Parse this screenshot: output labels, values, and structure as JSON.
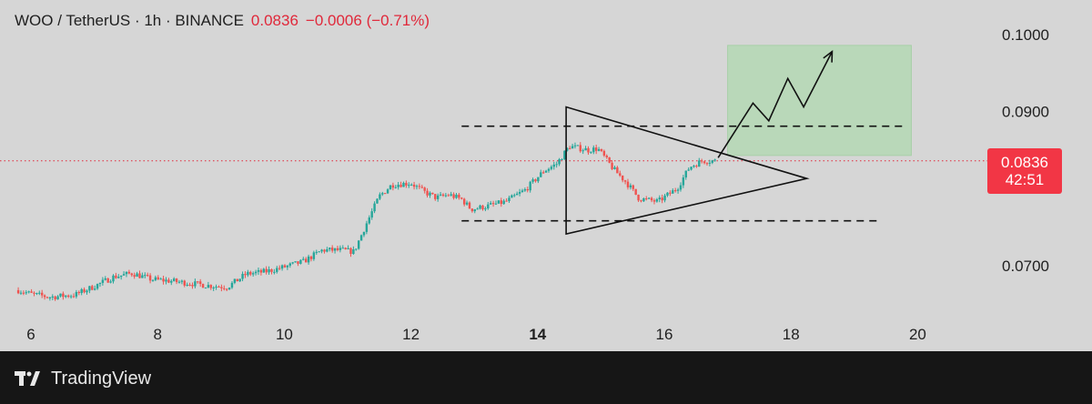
{
  "header": {
    "symbol": "WOO / TetherUS · 1h · BINANCE",
    "price": "0.0836",
    "change": "−0.0006 (−0.71%)"
  },
  "price_tag": {
    "price": "0.0836",
    "countdown": "42:51"
  },
  "footer": {
    "brand": "TradingView",
    "logo_icon": "tradingview-logo-icon"
  },
  "colors": {
    "up": "#26a69a",
    "down": "#ef5350",
    "target_zone": "#b9d8b9",
    "price_line": "#e0283a",
    "background": "#d6d6d6"
  },
  "chart_data": {
    "type": "candlestick",
    "x_ticks": [
      "6",
      "8",
      "10",
      "12",
      "14",
      "16",
      "18",
      "20"
    ],
    "x_tick_values": [
      6,
      8,
      10,
      12,
      14,
      16,
      18,
      20
    ],
    "bold_tick": "14",
    "y_ticks": [
      "0.1000",
      "0.0900",
      "0.0700"
    ],
    "y_tick_values": [
      0.1,
      0.09,
      0.07
    ],
    "last_price": 0.0836,
    "close_series": [
      [
        5.8,
        0.0668
      ],
      [
        6.0,
        0.0663
      ],
      [
        6.3,
        0.0659
      ],
      [
        6.7,
        0.0662
      ],
      [
        7.0,
        0.0673
      ],
      [
        7.3,
        0.0685
      ],
      [
        7.6,
        0.069
      ],
      [
        7.9,
        0.0682
      ],
      [
        8.2,
        0.068
      ],
      [
        8.5,
        0.0677
      ],
      [
        8.8,
        0.0674
      ],
      [
        9.1,
        0.0672
      ],
      [
        9.4,
        0.0689
      ],
      [
        9.7,
        0.0692
      ],
      [
        10.0,
        0.0698
      ],
      [
        10.3,
        0.0705
      ],
      [
        10.6,
        0.072
      ],
      [
        10.9,
        0.072
      ],
      [
        11.1,
        0.0718
      ],
      [
        11.3,
        0.0755
      ],
      [
        11.5,
        0.079
      ],
      [
        11.7,
        0.0805
      ],
      [
        12.0,
        0.0807
      ],
      [
        12.2,
        0.0796
      ],
      [
        12.4,
        0.0788
      ],
      [
        12.6,
        0.0792
      ],
      [
        12.8,
        0.0786
      ],
      [
        12.95,
        0.0773
      ],
      [
        13.2,
        0.0777
      ],
      [
        13.5,
        0.0783
      ],
      [
        13.8,
        0.0798
      ],
      [
        14.1,
        0.0823
      ],
      [
        14.3,
        0.0832
      ],
      [
        14.5,
        0.0855
      ],
      [
        14.8,
        0.085
      ],
      [
        14.95,
        0.0852
      ],
      [
        15.2,
        0.0825
      ],
      [
        15.4,
        0.0808
      ],
      [
        15.6,
        0.0787
      ],
      [
        15.9,
        0.0783
      ],
      [
        16.2,
        0.08
      ],
      [
        16.4,
        0.0828
      ],
      [
        16.6,
        0.0836
      ],
      [
        16.8,
        0.0836
      ]
    ],
    "annotations": {
      "triangle": [
        [
          14.45,
          0.0906
        ],
        [
          14.45,
          0.0741
        ],
        [
          18.25,
          0.0813
        ]
      ],
      "resistance_line": {
        "y": 0.0881,
        "x": [
          12.8,
          19.8
        ]
      },
      "support_line": {
        "y": 0.0758,
        "x": [
          12.8,
          19.4
        ]
      },
      "target_zone": {
        "x": [
          17.0,
          19.9
        ],
        "y": [
          0.0843,
          0.0986
        ]
      },
      "projected_path": [
        [
          16.85,
          0.084
        ],
        [
          17.4,
          0.0911
        ],
        [
          17.65,
          0.0888
        ],
        [
          17.95,
          0.0943
        ],
        [
          18.2,
          0.0906
        ],
        [
          18.65,
          0.0978
        ]
      ]
    }
  }
}
